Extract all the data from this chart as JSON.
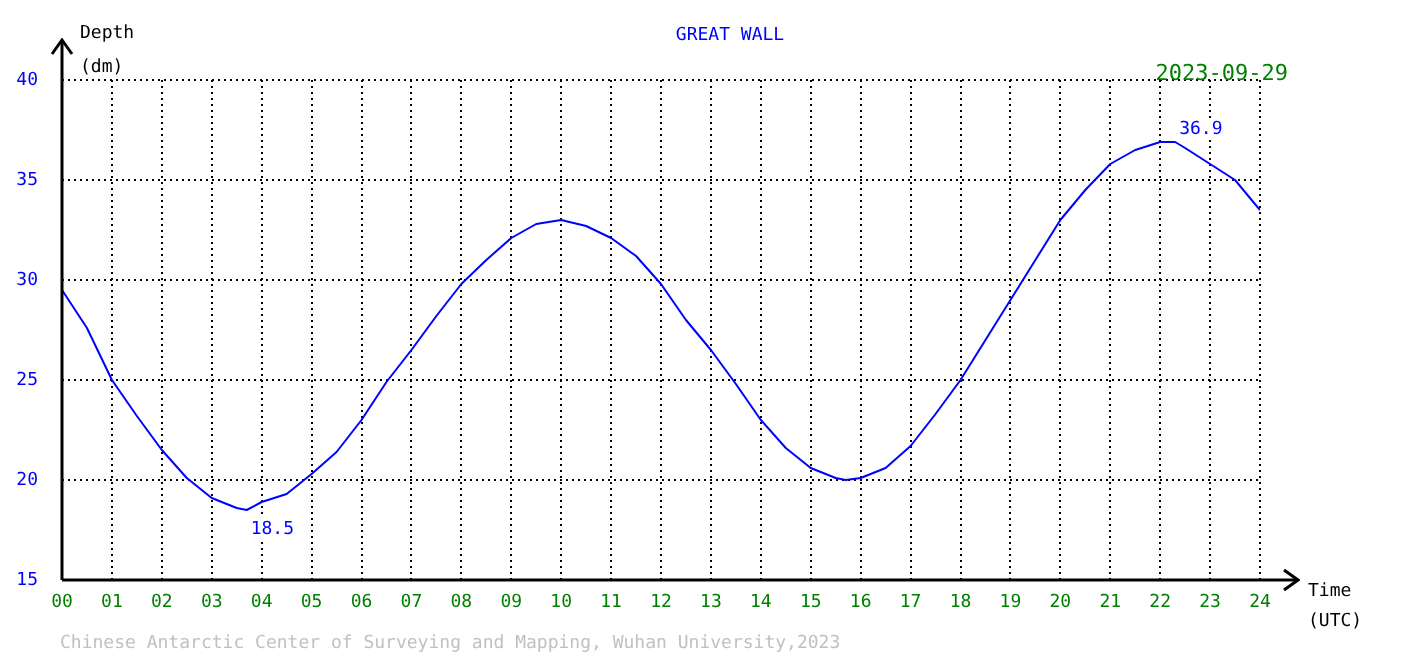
{
  "chart_data": {
    "type": "line",
    "title": "GREAT WALL",
    "subtitle": "2023-09-29",
    "xlabel": "Time (UTC)",
    "ylabel": "Depth (dm)",
    "x": [
      0,
      0.5,
      1,
      1.5,
      2,
      2.5,
      3,
      3.5,
      3.7,
      4,
      4.5,
      5,
      5.5,
      6,
      6.5,
      7,
      7.5,
      8,
      8.5,
      9,
      9.5,
      10,
      10.5,
      11,
      11.5,
      12,
      12.5,
      13,
      13.5,
      14,
      14.5,
      15,
      15.5,
      15.7,
      16,
      16.5,
      17,
      17.5,
      18,
      18.5,
      19,
      19.5,
      20,
      20.5,
      21,
      21.5,
      22,
      22.3,
      22.5,
      23,
      23.5,
      24
    ],
    "series": [
      {
        "color": "#0000ff",
        "values": [
          29.5,
          27.6,
          25.0,
          23.2,
          21.5,
          20.1,
          19.1,
          18.6,
          18.5,
          18.9,
          19.3,
          20.3,
          21.4,
          23.0,
          24.9,
          26.5,
          28.2,
          29.8,
          31.0,
          32.1,
          32.8,
          33.0,
          32.7,
          32.1,
          31.2,
          29.8,
          28.0,
          26.5,
          24.8,
          23.0,
          21.6,
          20.6,
          20.1,
          20.0,
          20.1,
          20.6,
          21.7,
          23.3,
          25.0,
          27.0,
          29.0,
          31.0,
          33.0,
          34.5,
          35.8,
          36.5,
          36.9,
          36.9,
          36.6,
          35.8,
          35.0,
          33.5
        ]
      }
    ],
    "xlim": [
      0,
      24
    ],
    "xticks": [
      {
        "value": 0,
        "label": "00"
      },
      {
        "value": 1,
        "label": "01"
      },
      {
        "value": 2,
        "label": "02"
      },
      {
        "value": 3,
        "label": "03"
      },
      {
        "value": 4,
        "label": "04"
      },
      {
        "value": 5,
        "label": "05"
      },
      {
        "value": 6,
        "label": "06"
      },
      {
        "value": 7,
        "label": "07"
      },
      {
        "value": 8,
        "label": "08"
      },
      {
        "value": 9,
        "label": "09"
      },
      10,
      11,
      12,
      13,
      14,
      15,
      16,
      17,
      18,
      19,
      20,
      21,
      22,
      23,
      24
    ],
    "ylim": [
      15,
      40
    ],
    "yticks": [
      15,
      20,
      25,
      30,
      35,
      40
    ],
    "grid": true,
    "marker": "none",
    "line_style": "solid",
    "annotations": [
      {
        "text": "18.5",
        "x": 3.7,
        "y": 18.5
      },
      {
        "text": "36.9",
        "x": 22.3,
        "y": 36.9
      },
      "Chinese Antarctic Center of Surveying and Mapping, Wuhan University,2023"
    ]
  }
}
